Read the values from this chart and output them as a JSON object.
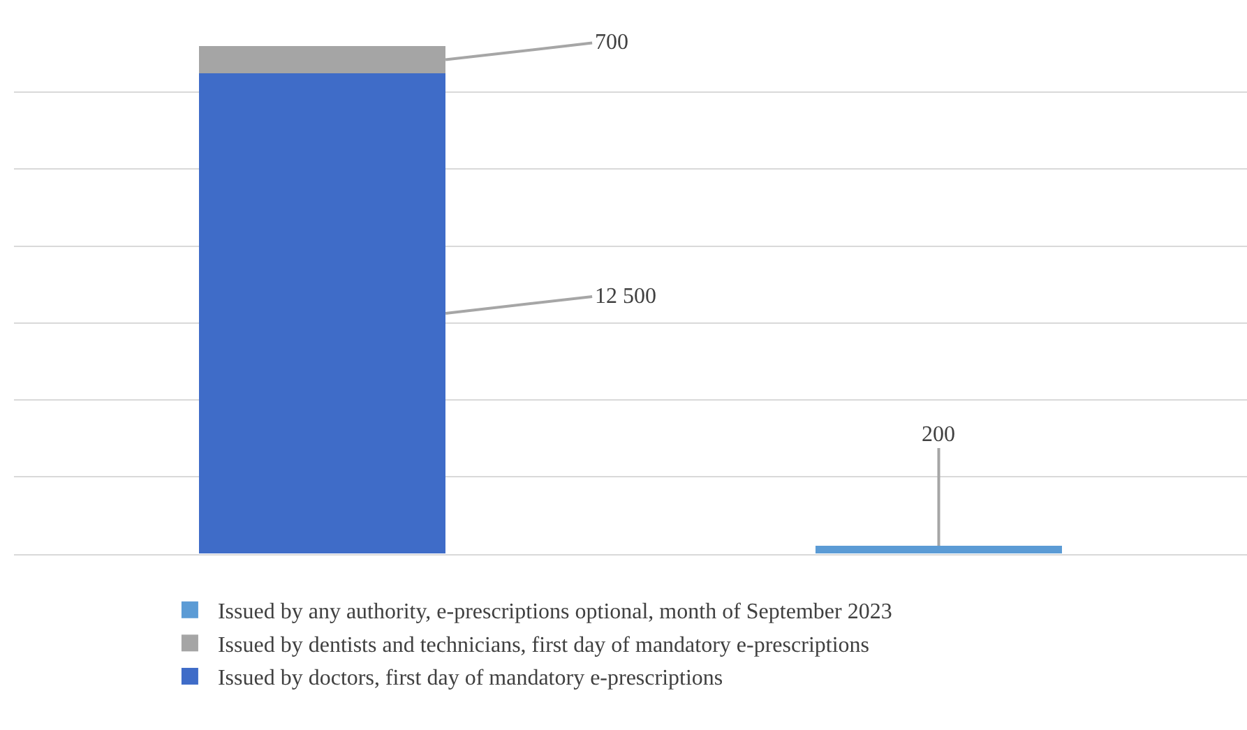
{
  "chart_data": {
    "type": "bar",
    "stacked": true,
    "categories": [
      null,
      null
    ],
    "series": [
      {
        "name": "Issued by doctors, first day of mandatory e-prescriptions",
        "color": "#3f6cc8",
        "values": [
          12500,
          null
        ],
        "value_labels": [
          "12 500",
          null
        ]
      },
      {
        "name": "Issued by dentists and technicians, first day of mandatory e-prescriptions",
        "color": "#a5a5a5",
        "values": [
          700,
          null
        ],
        "value_labels": [
          "700",
          null
        ]
      },
      {
        "name": "Issued by any authority, e-prescriptions optional, month of September 2023",
        "color": "#5b9bd5",
        "values": [
          null,
          200
        ],
        "value_labels": [
          null,
          "200"
        ]
      }
    ],
    "grid": "y",
    "legend": "bottom"
  }
}
